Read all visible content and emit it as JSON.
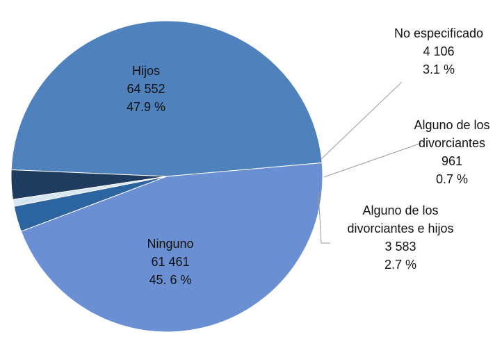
{
  "chart_data": {
    "type": "pie",
    "title": "",
    "slices": [
      {
        "name": "Hijos",
        "value": 64552,
        "value_label": "64 552",
        "percent": 47.9,
        "percent_label": "47.9 %",
        "color": "#4f81bd"
      },
      {
        "name": "No especificado",
        "value": 4106,
        "value_label": "4 106",
        "percent": 3.1,
        "percent_label": "3.1 %",
        "color": "#1f3b5e"
      },
      {
        "name": "Alguno de los divorciantes",
        "value": 961,
        "value_label": "961",
        "percent": 0.7,
        "percent_label": "0.7 %",
        "color": "#d6e6f2"
      },
      {
        "name": "Alguno de los divorciantes e hijos",
        "value": 3583,
        "value_label": "3 583",
        "percent": 2.7,
        "percent_label": "2.7 %",
        "color": "#2c64a0"
      },
      {
        "name": "Ninguno",
        "value": 61461,
        "value_label": "61 461",
        "percent": 45.6,
        "percent_label": "45. 6 %",
        "color": "#6a8fd3"
      }
    ],
    "legend": "none",
    "data_labels": "outside for small slices, inside for large slices"
  }
}
